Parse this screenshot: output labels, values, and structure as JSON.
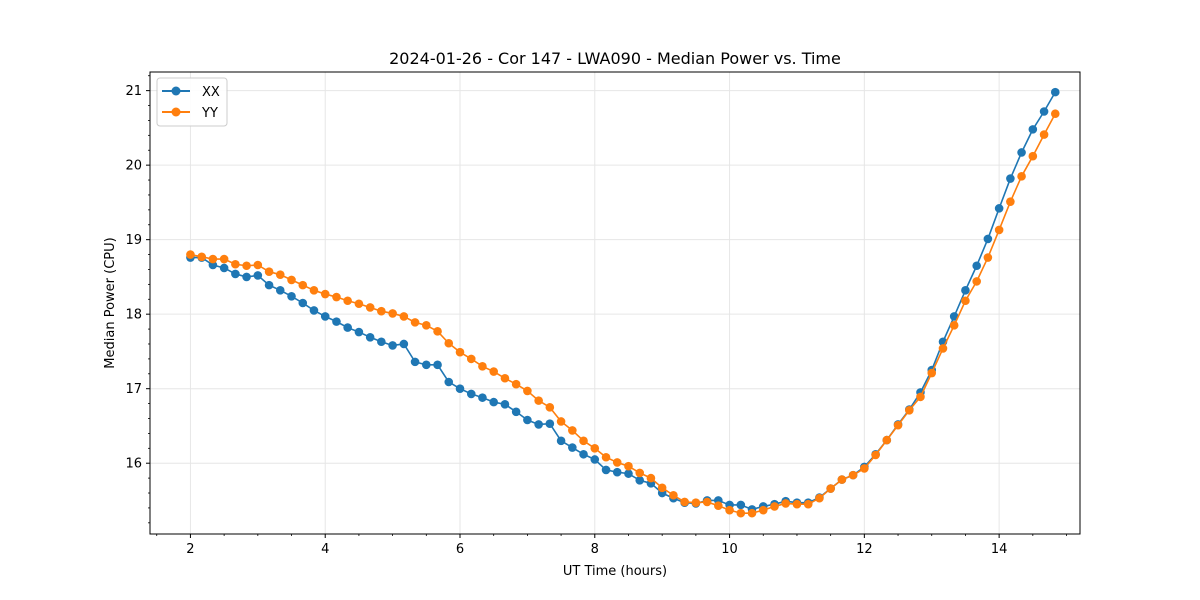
{
  "chart_data": {
    "type": "line",
    "title": "2024-01-26 - Cor 147 - LWA090 - Median Power vs. Time",
    "xlabel": "UT Time (hours)",
    "ylabel": "Median Power (CPU)",
    "xlim": [
      1.4,
      15.2
    ],
    "ylim": [
      15.05,
      21.25
    ],
    "xticks": [
      2,
      4,
      6,
      8,
      10,
      12,
      14
    ],
    "yticks": [
      16,
      17,
      18,
      19,
      20,
      21
    ],
    "xtick_labels": [
      "2",
      "4",
      "6",
      "8",
      "10",
      "12",
      "14"
    ],
    "ytick_labels": [
      "16",
      "17",
      "18",
      "19",
      "20",
      "21"
    ],
    "grid": true,
    "legend_position": "upper-left",
    "x": [
      2.0,
      2.167,
      2.333,
      2.5,
      2.667,
      2.833,
      3.0,
      3.167,
      3.333,
      3.5,
      3.667,
      3.833,
      4.0,
      4.167,
      4.333,
      4.5,
      4.667,
      4.833,
      5.0,
      5.167,
      5.333,
      5.5,
      5.667,
      5.833,
      6.0,
      6.167,
      6.333,
      6.5,
      6.667,
      6.833,
      7.0,
      7.167,
      7.333,
      7.5,
      7.667,
      7.833,
      8.0,
      8.167,
      8.333,
      8.5,
      8.667,
      8.833,
      9.0,
      9.167,
      9.333,
      9.5,
      9.667,
      9.833,
      10.0,
      10.167,
      10.333,
      10.5,
      10.667,
      10.833,
      11.0,
      11.167,
      11.333,
      11.5,
      11.667,
      11.833,
      12.0,
      12.167,
      12.333,
      12.5,
      12.667,
      12.833,
      13.0,
      13.167,
      13.333,
      13.5,
      13.667,
      13.833,
      14.0,
      14.167,
      14.333,
      14.5,
      14.667,
      14.833
    ],
    "series": [
      {
        "name": "XX",
        "color": "#1f77b4",
        "values": [
          18.76,
          18.76,
          18.66,
          18.62,
          18.54,
          18.5,
          18.52,
          18.39,
          18.32,
          18.24,
          18.15,
          18.05,
          17.97,
          17.9,
          17.82,
          17.76,
          17.69,
          17.63,
          17.58,
          17.6,
          17.36,
          17.32,
          17.32,
          17.09,
          17.0,
          16.93,
          16.88,
          16.82,
          16.79,
          16.69,
          16.58,
          16.52,
          16.53,
          16.3,
          16.21,
          16.12,
          16.05,
          15.91,
          15.88,
          15.86,
          15.77,
          15.73,
          15.6,
          15.53,
          15.47,
          15.46,
          15.5,
          15.5,
          15.44,
          15.44,
          15.38,
          15.42,
          15.45,
          15.49,
          15.47,
          15.47,
          15.54,
          15.66,
          15.78,
          15.84,
          15.95,
          16.12,
          16.31,
          16.52,
          16.72,
          16.95,
          17.25,
          17.63,
          17.97,
          18.32,
          18.65,
          19.01,
          19.42,
          19.82,
          20.17,
          20.48,
          20.72,
          20.98
        ]
      },
      {
        "name": "YY",
        "color": "#ff7f0e",
        "values": [
          18.8,
          18.77,
          18.74,
          18.74,
          18.67,
          18.65,
          18.66,
          18.57,
          18.53,
          18.46,
          18.39,
          18.32,
          18.27,
          18.23,
          18.18,
          18.14,
          18.09,
          18.04,
          18.01,
          17.97,
          17.89,
          17.85,
          17.77,
          17.61,
          17.49,
          17.4,
          17.3,
          17.23,
          17.14,
          17.06,
          16.97,
          16.84,
          16.75,
          16.56,
          16.44,
          16.3,
          16.2,
          16.08,
          16.01,
          15.96,
          15.87,
          15.8,
          15.67,
          15.57,
          15.48,
          15.47,
          15.48,
          15.43,
          15.37,
          15.33,
          15.33,
          15.37,
          15.42,
          15.46,
          15.45,
          15.45,
          15.53,
          15.66,
          15.78,
          15.84,
          15.93,
          16.11,
          16.31,
          16.51,
          16.71,
          16.89,
          17.21,
          17.54,
          17.85,
          18.18,
          18.44,
          18.76,
          19.13,
          19.51,
          19.85,
          20.12,
          20.41,
          20.69
        ]
      }
    ]
  }
}
